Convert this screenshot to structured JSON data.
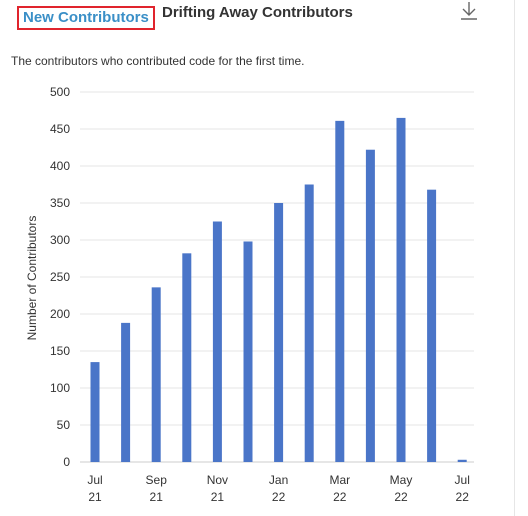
{
  "tabs": {
    "active": "New Contributors",
    "inactive": "Drifting Away Contributors"
  },
  "actions": {
    "download_icon": "download-icon"
  },
  "description": "The contributors who contributed code for the first time.",
  "colors": {
    "bar": "#4a75c8",
    "tab_active_text": "#3a8fc7",
    "tab_highlight": "#e0242d",
    "grid": "#e6e6e6"
  },
  "chart_data": {
    "type": "bar",
    "ylabel": "Number of Contributors",
    "xlabel": "",
    "ylim": [
      0,
      500
    ],
    "yticks": [
      0,
      50,
      100,
      150,
      200,
      250,
      300,
      350,
      400,
      450,
      500
    ],
    "grid": true,
    "categories": [
      "Jul 21",
      "Aug 21",
      "Sep 21",
      "Oct 21",
      "Nov 21",
      "Dec 21",
      "Jan 22",
      "Feb 22",
      "Mar 22",
      "Apr 22",
      "May 22",
      "Jun 22",
      "Jul 22"
    ],
    "values": [
      135,
      188,
      236,
      282,
      325,
      298,
      350,
      375,
      461,
      422,
      465,
      368,
      3
    ],
    "x_tick_labels": [
      {
        "index": 0,
        "line1": "Jul",
        "line2": "21"
      },
      {
        "index": 2,
        "line1": "Sep",
        "line2": "21"
      },
      {
        "index": 4,
        "line1": "Nov",
        "line2": "21"
      },
      {
        "index": 6,
        "line1": "Jan",
        "line2": "22"
      },
      {
        "index": 8,
        "line1": "Mar",
        "line2": "22"
      },
      {
        "index": 10,
        "line1": "May",
        "line2": "22"
      },
      {
        "index": 12,
        "line1": "Jul",
        "line2": "22"
      }
    ]
  }
}
